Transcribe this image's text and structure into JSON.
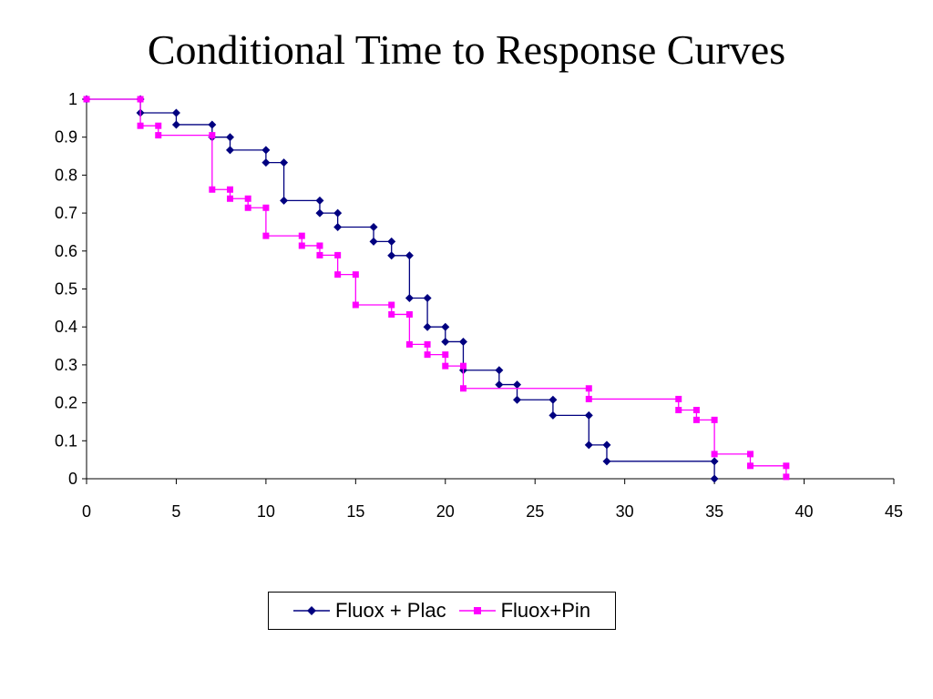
{
  "chart_data": {
    "type": "line",
    "title": "Conditional Time to Response Curves",
    "xlabel": "",
    "ylabel": "",
    "xlim": [
      0,
      45
    ],
    "ylim": [
      0,
      1
    ],
    "x_ticks": [
      0,
      5,
      10,
      15,
      20,
      25,
      30,
      35,
      40,
      45
    ],
    "y_ticks": [
      0,
      0.1,
      0.2,
      0.3,
      0.4,
      0.5,
      0.6,
      0.7,
      0.8,
      0.9,
      1
    ],
    "grid": false,
    "legend_position": "bottom",
    "series": [
      {
        "name": "Fluox + Plac",
        "color": "#000080",
        "marker": "diamond",
        "points": [
          [
            0,
            1
          ],
          [
            3,
            1
          ],
          [
            3,
            0.964
          ],
          [
            5,
            0.964
          ],
          [
            5,
            0.933
          ],
          [
            7,
            0.933
          ],
          [
            7,
            0.9
          ],
          [
            8,
            0.9
          ],
          [
            8,
            0.866
          ],
          [
            10,
            0.866
          ],
          [
            10,
            0.833
          ],
          [
            11,
            0.833
          ],
          [
            11,
            0.733
          ],
          [
            13,
            0.733
          ],
          [
            13,
            0.7
          ],
          [
            14,
            0.7
          ],
          [
            14,
            0.663
          ],
          [
            16,
            0.663
          ],
          [
            16,
            0.625
          ],
          [
            17,
            0.625
          ],
          [
            17,
            0.588
          ],
          [
            18,
            0.588
          ],
          [
            18,
            0.476
          ],
          [
            19,
            0.476
          ],
          [
            19,
            0.4
          ],
          [
            20,
            0.4
          ],
          [
            20,
            0.361
          ],
          [
            21,
            0.361
          ],
          [
            21,
            0.286
          ],
          [
            23,
            0.286
          ],
          [
            23,
            0.248
          ],
          [
            24,
            0.248
          ],
          [
            24,
            0.208
          ],
          [
            26,
            0.208
          ],
          [
            26,
            0.167
          ],
          [
            28,
            0.167
          ],
          [
            28,
            0.089
          ],
          [
            29,
            0.089
          ],
          [
            29,
            0.046
          ],
          [
            35,
            0.046
          ],
          [
            35,
            0
          ]
        ]
      },
      {
        "name": "Fluox+Pin",
        "color": "#ff00ff",
        "marker": "square",
        "points": [
          [
            0,
            1
          ],
          [
            3,
            1
          ],
          [
            3,
            0.93
          ],
          [
            4,
            0.93
          ],
          [
            4,
            0.905
          ],
          [
            7,
            0.905
          ],
          [
            7,
            0.762
          ],
          [
            8,
            0.762
          ],
          [
            8,
            0.738
          ],
          [
            9,
            0.738
          ],
          [
            9,
            0.714
          ],
          [
            10,
            0.714
          ],
          [
            10,
            0.64
          ],
          [
            12,
            0.64
          ],
          [
            12,
            0.614
          ],
          [
            13,
            0.614
          ],
          [
            13,
            0.589
          ],
          [
            14,
            0.589
          ],
          [
            14,
            0.538
          ],
          [
            15,
            0.538
          ],
          [
            15,
            0.458
          ],
          [
            17,
            0.458
          ],
          [
            17,
            0.433
          ],
          [
            18,
            0.433
          ],
          [
            18,
            0.354
          ],
          [
            19,
            0.354
          ],
          [
            19,
            0.327
          ],
          [
            20,
            0.327
          ],
          [
            20,
            0.297
          ],
          [
            21,
            0.297
          ],
          [
            21,
            0.238
          ],
          [
            28,
            0.238
          ],
          [
            28,
            0.21
          ],
          [
            33,
            0.21
          ],
          [
            33,
            0.181
          ],
          [
            34,
            0.181
          ],
          [
            34,
            0.155
          ],
          [
            35,
            0.155
          ],
          [
            35,
            0.065
          ],
          [
            37,
            0.065
          ],
          [
            37,
            0.034
          ],
          [
            39,
            0.034
          ],
          [
            39,
            0.005
          ]
        ]
      }
    ]
  }
}
